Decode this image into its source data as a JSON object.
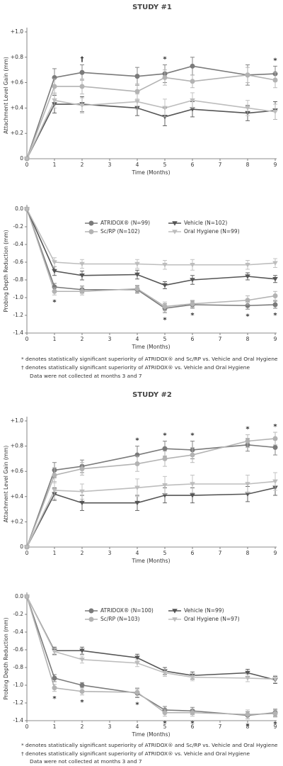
{
  "headings": [
    "STUDY #1",
    "STUDY #2"
  ],
  "footnotes": [
    [
      "* denotes statistically significant superiority of ATRIDOX® and Sc/RP vs. Vehicle and Oral Hygiene",
      "† denotes statistically significant superiority of ATRIDOX® vs. Vehicle and Oral Hygiene",
      "Data were not collected at months 3 and 7"
    ],
    [
      "* denotes statistically significant superiority of ATRIDOX® and Sc/RP vs. Vehicle and Oral Hygiene",
      "† denotes statistically significant superiority of ATRIDOX® vs. Vehicle and Oral Hygiene",
      "Data were not collected at months 3 and 7"
    ]
  ],
  "chart_data": [
    {
      "type": "line",
      "x_label": "Time (Months)",
      "y_label": "Attachment Level Gain (mm)",
      "x": [
        0,
        1,
        2,
        4,
        5,
        6,
        8,
        9
      ],
      "xlim": [
        0,
        9
      ],
      "xticks": [
        0,
        1,
        2,
        3,
        4,
        5,
        6,
        7,
        8,
        9
      ],
      "ylim": [
        0,
        1.0
      ],
      "yticks": [
        0,
        {
          "value": 0.2,
          "label": "+0.2"
        },
        {
          "value": 0.4,
          "label": "+0.4"
        },
        {
          "value": 0.6,
          "label": "+0.6"
        },
        {
          "value": 0.8,
          "label": "+0.8"
        },
        {
          "value": 1.0,
          "label": "+1.0"
        }
      ],
      "annotation_side": "above",
      "annotations": [
        {
          "x": 2,
          "text": "†"
        },
        {
          "x": 5,
          "text": "*"
        },
        {
          "x": 9,
          "text": "*"
        }
      ],
      "series": [
        {
          "name": "ATRIDOX®",
          "color": "#7a7a7a",
          "marker": "circle",
          "values": [
            0,
            0.64,
            0.68,
            0.65,
            0.67,
            0.73,
            0.66,
            0.67
          ],
          "errors": [
            0,
            0.07,
            0.06,
            0.07,
            0.07,
            0.07,
            0.08,
            0.06
          ]
        },
        {
          "name": "Sc/RP",
          "color": "#b3b3b3",
          "marker": "circle",
          "values": [
            0,
            0.57,
            0.57,
            0.53,
            0.64,
            0.61,
            0.66,
            0.62
          ],
          "errors": [
            0,
            0.06,
            0.06,
            0.06,
            0.06,
            0.05,
            0.06,
            0.06
          ]
        },
        {
          "name": "Vehicle",
          "color": "#555555",
          "marker": "triangle",
          "values": [
            0,
            0.43,
            0.43,
            0.4,
            0.33,
            0.39,
            0.36,
            0.38
          ],
          "errors": [
            0,
            0.07,
            0.06,
            0.06,
            0.07,
            0.06,
            0.06,
            0.07
          ]
        },
        {
          "name": "Oral Hygiene",
          "color": "#bdbdbd",
          "marker": "triangle",
          "values": [
            0,
            0.46,
            0.42,
            0.45,
            0.4,
            0.46,
            0.4,
            0.37
          ],
          "errors": [
            0,
            0.06,
            0.06,
            0.06,
            0.07,
            0.06,
            0.06,
            0.06
          ]
        }
      ]
    },
    {
      "type": "line",
      "x_label": "Time (Months)",
      "y_label": "Probing Depth Reduction (mm)",
      "x": [
        0,
        1,
        2,
        4,
        5,
        6,
        8,
        9
      ],
      "xlim": [
        0,
        9
      ],
      "xticks": [
        0,
        1,
        2,
        3,
        4,
        5,
        6,
        7,
        8,
        9
      ],
      "ylim": [
        -1.4,
        0
      ],
      "yticks": [
        {
          "value": 0,
          "label": "0.0"
        },
        -0.2,
        -0.4,
        -0.6,
        -0.8,
        {
          "value": -1.0,
          "label": "-1.0"
        },
        -1.2,
        -1.4
      ],
      "legend": "top",
      "annotation_side": "below",
      "annotations": [
        {
          "x": 1,
          "text": "*"
        },
        {
          "x": 5,
          "text": "*"
        },
        {
          "x": 6,
          "text": "*"
        },
        {
          "x": 8,
          "text": "*"
        },
        {
          "x": 9,
          "text": "*"
        }
      ],
      "series": [
        {
          "name": "ATRIDOX® (N=99)",
          "color": "#7a7a7a",
          "marker": "circle",
          "values": [
            0,
            -0.88,
            -0.91,
            -0.91,
            -1.12,
            -1.08,
            -1.09,
            -1.08
          ],
          "errors": [
            0,
            0.04,
            0.04,
            0.04,
            0.05,
            0.04,
            0.04,
            0.04
          ]
        },
        {
          "name": "Sc/RP (N=102)",
          "color": "#b3b3b3",
          "marker": "circle",
          "values": [
            0,
            -0.93,
            -0.93,
            -0.9,
            -1.1,
            -1.07,
            -1.03,
            -0.98
          ],
          "errors": [
            0,
            0.04,
            0.04,
            0.04,
            0.05,
            0.04,
            0.05,
            0.05
          ]
        },
        {
          "name": "Vehicle (N=102)",
          "color": "#555555",
          "marker": "triangle",
          "values": [
            0,
            -0.7,
            -0.75,
            -0.74,
            -0.86,
            -0.8,
            -0.76,
            -0.79
          ],
          "errors": [
            0,
            0.05,
            0.05,
            0.05,
            0.04,
            0.05,
            0.04,
            0.04
          ]
        },
        {
          "name": "Oral Hygiene (N=99)",
          "color": "#bdbdbd",
          "marker": "triangle",
          "values": [
            0,
            -0.6,
            -0.62,
            -0.62,
            -0.63,
            -0.63,
            -0.63,
            -0.61
          ],
          "errors": [
            0,
            0.05,
            0.05,
            0.05,
            0.05,
            0.06,
            0.05,
            0.05
          ]
        }
      ]
    },
    {
      "type": "line",
      "x_label": "Time (Months)",
      "y_label": "Attachment Level Gain (mm)",
      "x": [
        0,
        1,
        2,
        4,
        5,
        6,
        8,
        9
      ],
      "xlim": [
        0,
        9
      ],
      "xticks": [
        0,
        1,
        2,
        3,
        4,
        5,
        6,
        7,
        8,
        9
      ],
      "ylim": [
        0,
        1.0
      ],
      "yticks": [
        0,
        {
          "value": 0.2,
          "label": "+0.2"
        },
        {
          "value": 0.4,
          "label": "+0.4"
        },
        {
          "value": 0.6,
          "label": "+0.6"
        },
        {
          "value": 0.8,
          "label": "+0.8"
        },
        {
          "value": 1.0,
          "label": "+1.0"
        }
      ],
      "annotation_side": "above",
      "annotations": [
        {
          "x": 4,
          "text": "*"
        },
        {
          "x": 5,
          "text": "*"
        },
        {
          "x": 6,
          "text": "*"
        },
        {
          "x": 8,
          "text": "*"
        },
        {
          "x": 9,
          "text": "*"
        }
      ],
      "series": [
        {
          "name": "ATRIDOX®",
          "color": "#7a7a7a",
          "marker": "circle",
          "values": [
            0,
            0.61,
            0.64,
            0.73,
            0.78,
            0.77,
            0.81,
            0.79
          ],
          "errors": [
            0,
            0.06,
            0.05,
            0.07,
            0.06,
            0.07,
            0.05,
            0.06
          ]
        },
        {
          "name": "Sc/RP",
          "color": "#b3b3b3",
          "marker": "circle",
          "values": [
            0,
            0.57,
            0.62,
            0.66,
            0.7,
            0.73,
            0.84,
            0.86
          ],
          "errors": [
            0,
            0.06,
            0.05,
            0.06,
            0.06,
            0.06,
            0.05,
            0.05
          ]
        },
        {
          "name": "Vehicle",
          "color": "#555555",
          "marker": "triangle",
          "values": [
            0,
            0.42,
            0.35,
            0.35,
            0.41,
            0.41,
            0.42,
            0.47
          ],
          "errors": [
            0,
            0.05,
            0.06,
            0.06,
            0.06,
            0.06,
            0.06,
            0.06
          ]
        },
        {
          "name": "Oral Hygiene",
          "color": "#bdbdbd",
          "marker": "triangle",
          "values": [
            0,
            0.45,
            0.44,
            0.47,
            0.49,
            0.5,
            0.5,
            0.52
          ],
          "errors": [
            0,
            0.07,
            0.06,
            0.07,
            0.07,
            0.07,
            0.07,
            0.07
          ]
        }
      ]
    },
    {
      "type": "line",
      "x_label": "Time (Months)",
      "y_label": "Probing Depth Reduction (mm)",
      "x": [
        0,
        1,
        2,
        4,
        5,
        6,
        8,
        9
      ],
      "xlim": [
        0,
        9
      ],
      "xticks": [
        0,
        1,
        2,
        3,
        4,
        5,
        6,
        7,
        8,
        9
      ],
      "ylim": [
        -1.4,
        0
      ],
      "yticks": [
        {
          "value": 0,
          "label": "0.0"
        },
        -0.2,
        -0.4,
        -0.6,
        -0.8,
        {
          "value": -1.0,
          "label": "-1.0"
        },
        -1.2,
        -1.4
      ],
      "legend": "top",
      "annotation_side": "below",
      "annotations": [
        {
          "x": 1,
          "text": "*"
        },
        {
          "x": 2,
          "text": "*"
        },
        {
          "x": 4,
          "text": "*"
        },
        {
          "x": 5,
          "text": "*"
        },
        {
          "x": 6,
          "text": "*"
        },
        {
          "x": 8,
          "text": "*"
        },
        {
          "x": 9,
          "text": "*"
        }
      ],
      "series": [
        {
          "name": "ATRIDOX® (N=100)",
          "color": "#7a7a7a",
          "marker": "circle",
          "values": [
            0,
            -0.92,
            -1.0,
            -1.09,
            -1.28,
            -1.29,
            -1.34,
            -1.31
          ],
          "errors": [
            0,
            0.04,
            0.03,
            0.05,
            0.04,
            0.04,
            0.04,
            0.04
          ]
        },
        {
          "name": "Sc/RP (N=103)",
          "color": "#b3b3b3",
          "marker": "circle",
          "values": [
            0,
            -1.03,
            -1.07,
            -1.08,
            -1.31,
            -1.31,
            -1.33,
            -1.32
          ],
          "errors": [
            0,
            0.04,
            0.04,
            0.05,
            0.04,
            0.04,
            0.05,
            0.04
          ]
        },
        {
          "name": "Vehicle (N=99)",
          "color": "#555555",
          "marker": "triangle",
          "values": [
            0,
            -0.61,
            -0.61,
            -0.69,
            -0.84,
            -0.89,
            -0.86,
            -0.94
          ],
          "errors": [
            0,
            0.04,
            0.04,
            0.04,
            0.04,
            0.04,
            0.04,
            0.04
          ]
        },
        {
          "name": "Oral Hygiene (N=97)",
          "color": "#bdbdbd",
          "marker": "triangle",
          "values": [
            0,
            -0.62,
            -0.71,
            -0.75,
            -0.86,
            -0.91,
            -0.92,
            -0.93
          ],
          "errors": [
            0,
            0.04,
            0.04,
            0.04,
            0.04,
            0.04,
            0.04,
            0.04
          ]
        }
      ]
    }
  ]
}
